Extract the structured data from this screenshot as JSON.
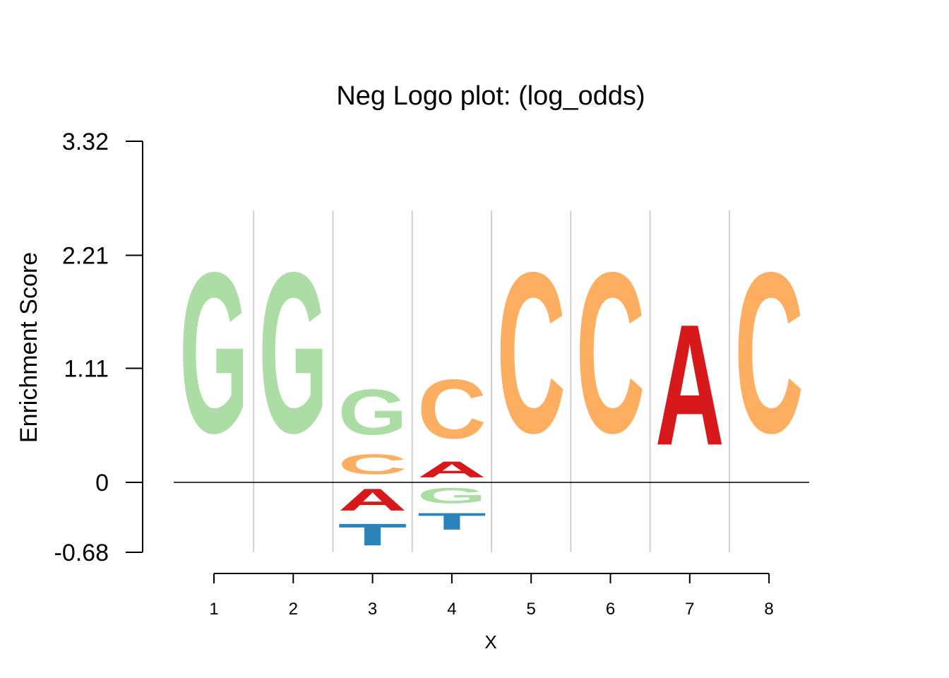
{
  "chart_data": {
    "type": "sequence-logo",
    "title": "Neg Logo plot: (log_odds)",
    "xlabel": "X",
    "ylabel": "Enrichment Score",
    "positions": [
      1,
      2,
      3,
      4,
      5,
      6,
      7,
      8
    ],
    "x_tick_labels": [
      "1",
      "2",
      "3",
      "4",
      "5",
      "6",
      "7",
      "8"
    ],
    "y_ticks": [
      3.32,
      2.21,
      1.11,
      0,
      -0.68
    ],
    "y_tick_labels": [
      "3.32",
      "2.21",
      "1.11",
      "0",
      "-0.68"
    ],
    "ylim": [
      -0.68,
      3.32
    ],
    "grid": "vertical separators between positions",
    "colors": {
      "A": "#d7191c",
      "C": "#fdae61",
      "G": "#abdda4",
      "T": "#2b83ba"
    },
    "stacks": [
      {
        "position": 1,
        "letters": [
          {
            "base": "G",
            "from": 0,
            "to": 2.5
          }
        ]
      },
      {
        "position": 2,
        "letters": [
          {
            "base": "G",
            "from": 0,
            "to": 2.5
          }
        ]
      },
      {
        "position": 3,
        "letters": [
          {
            "base": "C",
            "from": 0.02,
            "to": 0.33
          },
          {
            "base": "G",
            "from": 0.33,
            "to": 1.04
          },
          {
            "base": "A",
            "from": -0.34,
            "to": 0
          },
          {
            "base": "T",
            "from": -0.68,
            "to": -0.34
          }
        ]
      },
      {
        "position": 4,
        "letters": [
          {
            "base": "A",
            "from": 0,
            "to": 0.25
          },
          {
            "base": "C",
            "from": 0.25,
            "to": 1.17
          },
          {
            "base": "G",
            "from": -0.25,
            "to": -0.01
          },
          {
            "base": "T",
            "from": -0.51,
            "to": -0.25
          }
        ]
      },
      {
        "position": 5,
        "letters": [
          {
            "base": "C",
            "from": 0,
            "to": 2.5
          }
        ]
      },
      {
        "position": 6,
        "letters": [
          {
            "base": "C",
            "from": 0,
            "to": 2.5
          }
        ]
      },
      {
        "position": 7,
        "letters": [
          {
            "base": "A",
            "from": 0,
            "to": 1.88
          }
        ]
      },
      {
        "position": 8,
        "letters": [
          {
            "base": "C",
            "from": 0,
            "to": 2.5
          }
        ]
      }
    ]
  }
}
